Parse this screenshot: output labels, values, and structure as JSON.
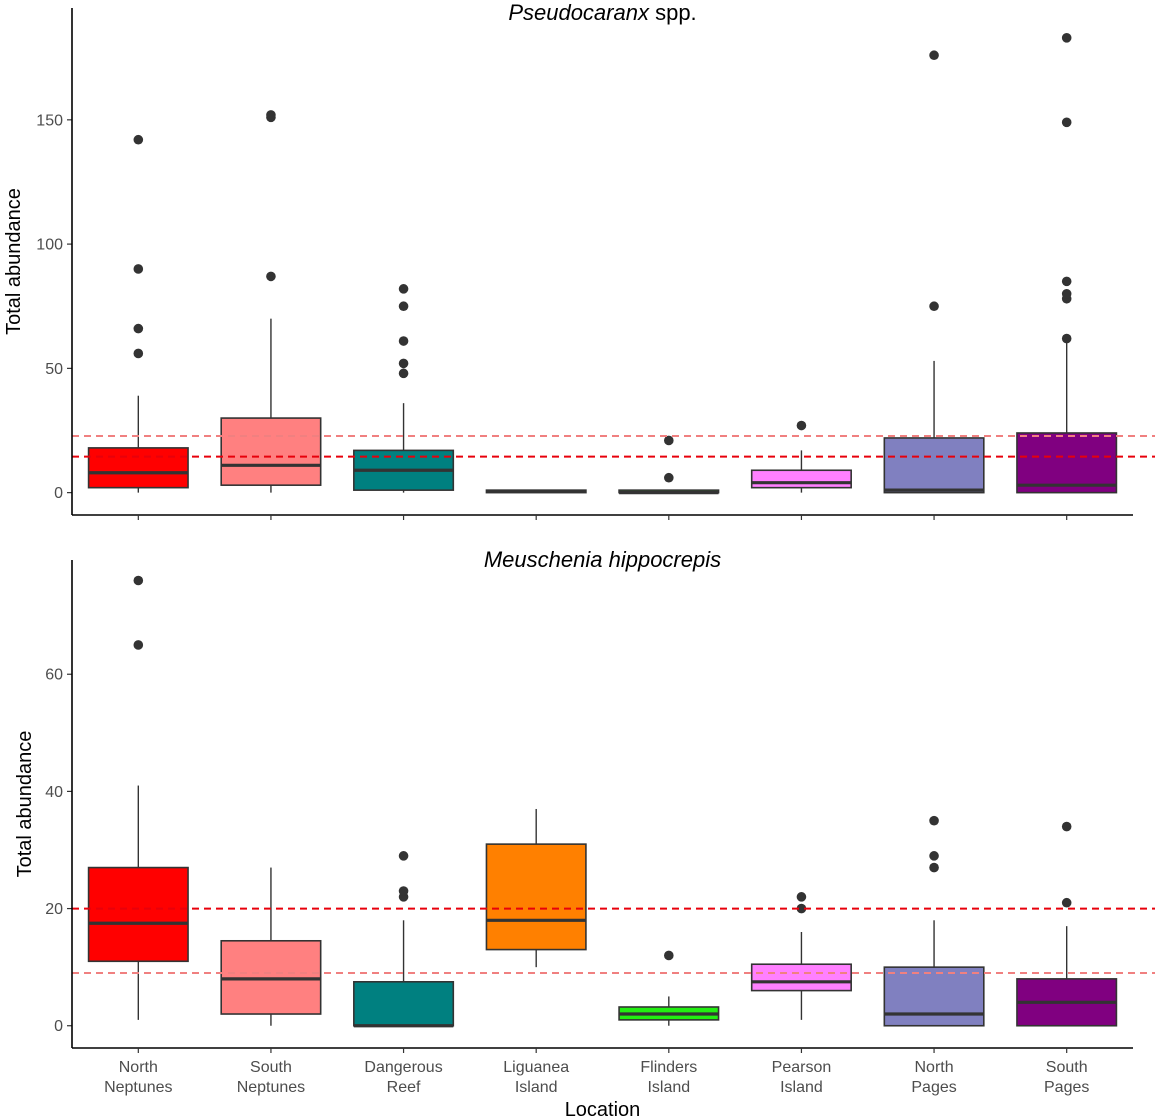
{
  "chart_data": {
    "type": "boxplot",
    "xlabel": "Location",
    "category_lines": [
      [
        "North",
        "Neptunes"
      ],
      [
        "South",
        "Neptunes"
      ],
      [
        "Dangerous",
        "Reef"
      ],
      [
        "Liguanea",
        "Island"
      ],
      [
        "Flinders",
        "Island"
      ],
      [
        "Pearson",
        "Island"
      ],
      [
        "North",
        "Pages"
      ],
      [
        "South",
        "Pages"
      ]
    ],
    "colors": [
      "#FF0000",
      "#FF8080",
      "#008080",
      "#FF8000",
      "#22EE11",
      "#FF80FF",
      "#8080C0",
      "#800080"
    ],
    "panels": [
      {
        "title_italic": "Pseudocaranx",
        "title_rest": " spp.",
        "ylabel": "Total abundance",
        "ylim": [
          -9,
          195
        ],
        "yticks": [
          0,
          50,
          100,
          150
        ],
        "reference_lines": [
          {
            "value": 22.8,
            "color": "#F08080"
          },
          {
            "value": 14.5,
            "color": "#E8000B"
          }
        ],
        "boxes": [
          {
            "q1": 2,
            "median": 8,
            "q3": 18,
            "whislo": 0,
            "whishi": 39,
            "outliers": [
              56,
              66,
              90,
              142
            ]
          },
          {
            "q1": 3,
            "median": 11,
            "q3": 30,
            "whislo": 0,
            "whishi": 70,
            "outliers": [
              87,
              151,
              152
            ]
          },
          {
            "q1": 1,
            "median": 9,
            "q3": 17,
            "whislo": 0,
            "whishi": 36,
            "outliers": [
              48,
              52,
              61,
              75,
              82
            ]
          },
          {
            "q1": 0,
            "median": 0.5,
            "q3": 1,
            "whislo": 0,
            "whishi": 1,
            "outliers": []
          },
          {
            "q1": 0,
            "median": 0,
            "q3": 1,
            "whislo": 0,
            "whishi": 1,
            "outliers": [
              6,
              21
            ]
          },
          {
            "q1": 2,
            "median": 4,
            "q3": 9,
            "whislo": 0,
            "whishi": 17,
            "outliers": [
              27
            ]
          },
          {
            "q1": 0,
            "median": 1,
            "q3": 22,
            "whislo": 0,
            "whishi": 53,
            "outliers": [
              75,
              176
            ]
          },
          {
            "q1": 0,
            "median": 3,
            "q3": 24,
            "whislo": 0,
            "whishi": 62,
            "outliers": [
              62,
              78,
              80,
              85,
              149,
              183
            ]
          }
        ]
      },
      {
        "title_italic": "Meuschenia hippocrepis",
        "title_rest": "",
        "ylabel": "Total abundance",
        "ylim": [
          -3.8,
          79.5
        ],
        "yticks": [
          0,
          20,
          40,
          60
        ],
        "reference_lines": [
          {
            "value": 20,
            "color": "#E8000B"
          },
          {
            "value": 9,
            "color": "#F08080"
          }
        ],
        "boxes": [
          {
            "q1": 11,
            "median": 17.5,
            "q3": 27,
            "whislo": 1,
            "whishi": 41,
            "outliers": [
              65,
              76
            ]
          },
          {
            "q1": 2,
            "median": 8,
            "q3": 14.5,
            "whislo": 0,
            "whishi": 27,
            "outliers": []
          },
          {
            "q1": 0,
            "median": 0,
            "q3": 7.5,
            "whislo": 0,
            "whishi": 18,
            "outliers": [
              22,
              23,
              29
            ]
          },
          {
            "q1": 13,
            "median": 18,
            "q3": 31,
            "whislo": 10,
            "whishi": 37,
            "outliers": []
          },
          {
            "q1": 1,
            "median": 2,
            "q3": 3.2,
            "whislo": 0,
            "whishi": 5,
            "outliers": [
              12
            ]
          },
          {
            "q1": 6,
            "median": 7.5,
            "q3": 10.5,
            "whislo": 1,
            "whishi": 16,
            "outliers": [
              20,
              22
            ]
          },
          {
            "q1": 0,
            "median": 2,
            "q3": 10,
            "whislo": 0,
            "whishi": 18,
            "outliers": [
              27,
              29,
              35
            ]
          },
          {
            "q1": 0,
            "median": 4,
            "q3": 8,
            "whislo": 0,
            "whishi": 17,
            "outliers": [
              21,
              34
            ]
          }
        ]
      }
    ]
  }
}
